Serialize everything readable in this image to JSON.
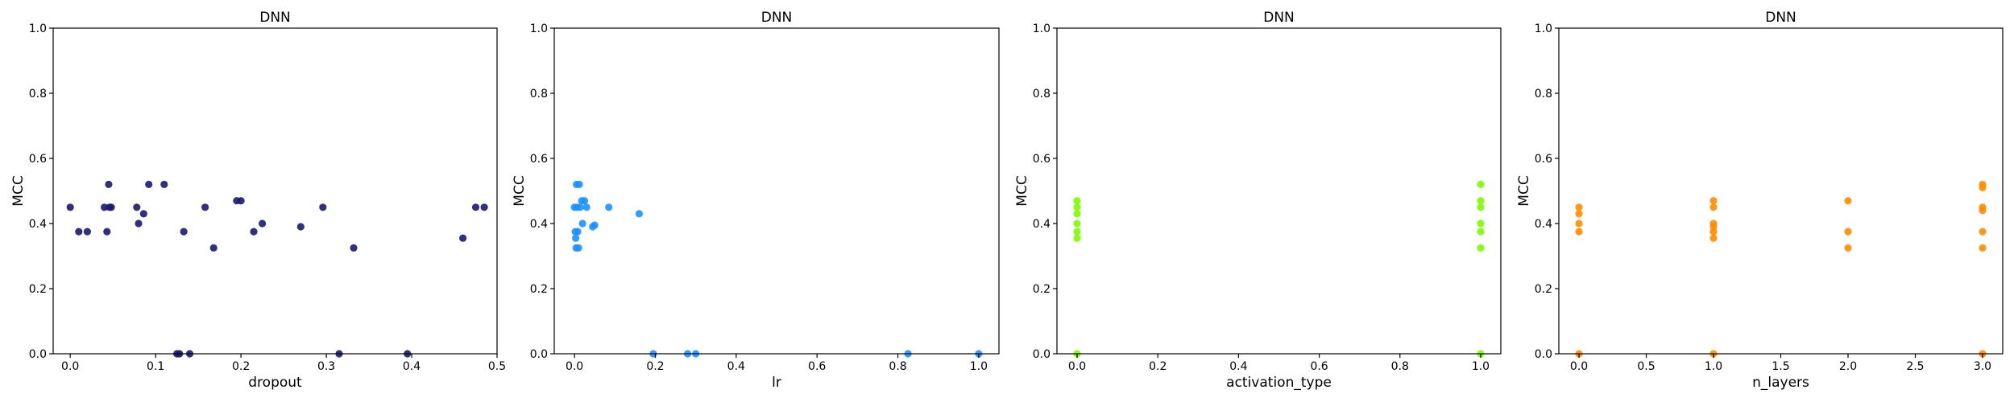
{
  "chart_data": [
    {
      "type": "scatter",
      "title": "DNN",
      "xlabel": "dropout",
      "ylabel": "MCC",
      "xlim": [
        -0.02,
        0.5
      ],
      "ylim": [
        0,
        1
      ],
      "xticks": [
        "0.0",
        "0.1",
        "0.2",
        "0.3",
        "0.4",
        "0.5"
      ],
      "xtick_values": [
        0,
        0.1,
        0.2,
        0.3,
        0.4,
        0.5
      ],
      "yticks": [
        "0.0",
        "0.2",
        "0.4",
        "0.6",
        "0.8",
        "1.0"
      ],
      "ytick_values": [
        0,
        0.2,
        0.4,
        0.6,
        0.8,
        1.0
      ],
      "color": "#191970",
      "points": [
        [
          0.0,
          0.45
        ],
        [
          0.01,
          0.375
        ],
        [
          0.02,
          0.375
        ],
        [
          0.04,
          0.45
        ],
        [
          0.043,
          0.375
        ],
        [
          0.045,
          0.52
        ],
        [
          0.046,
          0.45
        ],
        [
          0.048,
          0.45
        ],
        [
          0.078,
          0.45
        ],
        [
          0.08,
          0.4
        ],
        [
          0.086,
          0.43
        ],
        [
          0.092,
          0.52
        ],
        [
          0.11,
          0.52
        ],
        [
          0.125,
          0.0
        ],
        [
          0.128,
          0.0
        ],
        [
          0.133,
          0.375
        ],
        [
          0.14,
          0.0
        ],
        [
          0.158,
          0.45
        ],
        [
          0.168,
          0.325
        ],
        [
          0.195,
          0.47
        ],
        [
          0.2,
          0.47
        ],
        [
          0.215,
          0.375
        ],
        [
          0.225,
          0.4
        ],
        [
          0.27,
          0.39
        ],
        [
          0.296,
          0.45
        ],
        [
          0.315,
          0.0
        ],
        [
          0.332,
          0.325
        ],
        [
          0.395,
          0.0
        ],
        [
          0.46,
          0.355
        ],
        [
          0.475,
          0.45
        ],
        [
          0.485,
          0.45
        ]
      ]
    },
    {
      "type": "scatter",
      "title": "DNN",
      "xlabel": "lr",
      "ylabel": "MCC",
      "xlim": [
        -0.05,
        1.05
      ],
      "ylim": [
        0,
        1
      ],
      "xticks": [
        "0.0",
        "0.2",
        "0.4",
        "0.6",
        "0.8",
        "1.0"
      ],
      "xtick_values": [
        0,
        0.2,
        0.4,
        0.6,
        0.8,
        1.0
      ],
      "yticks": [
        "0.0",
        "0.2",
        "0.4",
        "0.6",
        "0.8",
        "1.0"
      ],
      "ytick_values": [
        0,
        0.2,
        0.4,
        0.6,
        0.8,
        1.0
      ],
      "color": "#1E90FF",
      "points": [
        [
          0.0,
          0.45
        ],
        [
          0.002,
          0.375
        ],
        [
          0.003,
          0.355
        ],
        [
          0.004,
          0.325
        ],
        [
          0.005,
          0.52
        ],
        [
          0.006,
          0.45
        ],
        [
          0.008,
          0.375
        ],
        [
          0.01,
          0.325
        ],
        [
          0.012,
          0.52
        ],
        [
          0.014,
          0.45
        ],
        [
          0.018,
          0.47
        ],
        [
          0.02,
          0.4
        ],
        [
          0.025,
          0.47
        ],
        [
          0.03,
          0.45
        ],
        [
          0.045,
          0.39
        ],
        [
          0.05,
          0.395
        ],
        [
          0.085,
          0.45
        ],
        [
          0.16,
          0.43
        ],
        [
          0.195,
          0.0
        ],
        [
          0.28,
          0.0
        ],
        [
          0.3,
          0.0
        ],
        [
          0.825,
          0.0
        ],
        [
          1.0,
          0.0
        ]
      ]
    },
    {
      "type": "scatter",
      "title": "DNN",
      "xlabel": "activation_type",
      "ylabel": "MCC",
      "xlim": [
        -0.05,
        1.05
      ],
      "ylim": [
        0,
        1
      ],
      "xticks": [
        "0.0",
        "0.2",
        "0.4",
        "0.6",
        "0.8",
        "1.0"
      ],
      "xtick_values": [
        0,
        0.2,
        0.4,
        0.6,
        0.8,
        1.0
      ],
      "yticks": [
        "0.0",
        "0.2",
        "0.4",
        "0.6",
        "0.8",
        "1.0"
      ],
      "ytick_values": [
        0,
        0.2,
        0.4,
        0.6,
        0.8,
        1.0
      ],
      "color": "#7CFC00",
      "points": [
        [
          0,
          0.47
        ],
        [
          0,
          0.45
        ],
        [
          0,
          0.43
        ],
        [
          0,
          0.4
        ],
        [
          0,
          0.375
        ],
        [
          0,
          0.355
        ],
        [
          0,
          0.0
        ],
        [
          1,
          0.52
        ],
        [
          1,
          0.47
        ],
        [
          1,
          0.45
        ],
        [
          1,
          0.4
        ],
        [
          1,
          0.375
        ],
        [
          1,
          0.325
        ],
        [
          1,
          0.0
        ]
      ]
    },
    {
      "type": "scatter",
      "title": "DNN",
      "xlabel": "n_layers",
      "ylabel": "MCC",
      "xlim": [
        -0.15,
        3.15
      ],
      "ylim": [
        0,
        1
      ],
      "xticks": [
        "0.0",
        "0.5",
        "1.0",
        "1.5",
        "2.0",
        "2.5",
        "3.0"
      ],
      "xtick_values": [
        0,
        0.5,
        1.0,
        1.5,
        2.0,
        2.5,
        3.0
      ],
      "yticks": [
        "0.0",
        "0.2",
        "0.4",
        "0.6",
        "0.8",
        "1.0"
      ],
      "ytick_values": [
        0,
        0.2,
        0.4,
        0.6,
        0.8,
        1.0
      ],
      "color": "#FF8C00",
      "points": [
        [
          0,
          0.45
        ],
        [
          0,
          0.43
        ],
        [
          0,
          0.4
        ],
        [
          0,
          0.375
        ],
        [
          0,
          0.0
        ],
        [
          1,
          0.47
        ],
        [
          1,
          0.45
        ],
        [
          1,
          0.4
        ],
        [
          1,
          0.39
        ],
        [
          1,
          0.375
        ],
        [
          1,
          0.355
        ],
        [
          1,
          0.0
        ],
        [
          2,
          0.47
        ],
        [
          2,
          0.375
        ],
        [
          2,
          0.325
        ],
        [
          3,
          0.52
        ],
        [
          3,
          0.51
        ],
        [
          3,
          0.45
        ],
        [
          3,
          0.44
        ],
        [
          3,
          0.375
        ],
        [
          3,
          0.325
        ],
        [
          3,
          0.0
        ]
      ]
    }
  ]
}
